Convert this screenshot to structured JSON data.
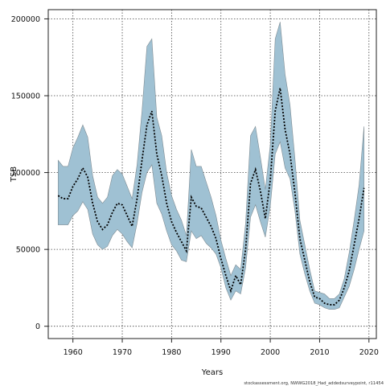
{
  "chart_data": {
    "type": "area",
    "xlabel": "Years",
    "ylabel": "TSB",
    "footnote": "stockassessment.org, NWWG2018_Had_addedsurveypoint, r11454",
    "xlim": [
      1955.0,
      2021.5
    ],
    "ylim": [
      -8000,
      206000
    ],
    "x_ticks": [
      1960,
      1970,
      1980,
      1990,
      2000,
      2010,
      2020
    ],
    "y_ticks": [
      0,
      50000,
      100000,
      150000,
      200000
    ],
    "grid": true,
    "band_color": "#9fc1d3",
    "band_edge_color": "#7f8c93",
    "line_color": "#000000",
    "series": [
      {
        "years": [
          1957,
          1958,
          1959,
          1960,
          1961,
          1962,
          1963,
          1964,
          1965,
          1966,
          1967,
          1968,
          1969,
          1970,
          1971,
          1972,
          1973,
          1974,
          1975,
          1976,
          1977,
          1978,
          1979,
          1980,
          1981,
          1982,
          1983,
          1984,
          1985,
          1986,
          1987,
          1988,
          1989,
          1990,
          1991,
          1992,
          1993,
          1994,
          1995,
          1996,
          1997,
          1998,
          1999,
          2000,
          2001,
          2002,
          2003,
          2004,
          2005,
          2006,
          2007,
          2008,
          2009,
          2010,
          2011,
          2012,
          2013,
          2014,
          2015,
          2016,
          2017,
          2018,
          2019
        ],
        "estimate": [
          85000,
          83000,
          83000,
          91000,
          96000,
          103000,
          97000,
          80000,
          68000,
          63000,
          66000,
          74000,
          80000,
          79000,
          72000,
          65000,
          83000,
          108000,
          131000,
          140000,
          112000,
          98000,
          80000,
          68000,
          61000,
          55000,
          49000,
          84000,
          78000,
          77000,
          71000,
          65000,
          57000,
          44000,
          33000,
          23000,
          33000,
          27000,
          50000,
          93000,
          102000,
          88000,
          70000,
          95000,
          140000,
          155000,
          128000,
          112000,
          87000,
          57000,
          43000,
          29000,
          19000,
          18000,
          15000,
          14000,
          14000,
          17000,
          25000,
          36000,
          53000,
          70000,
          90000
        ],
        "lower": [
          66000,
          66000,
          66000,
          72000,
          75000,
          81000,
          76000,
          60000,
          53000,
          50000,
          52000,
          59000,
          63000,
          60000,
          55000,
          51000,
          67000,
          87000,
          100000,
          105000,
          80000,
          73000,
          62000,
          53000,
          49000,
          43000,
          42000,
          62000,
          57000,
          59000,
          54000,
          51000,
          47000,
          38000,
          25000,
          17000,
          23000,
          21000,
          38000,
          71000,
          79000,
          68000,
          58000,
          78000,
          112000,
          120000,
          103000,
          96000,
          75000,
          47000,
          34000,
          23000,
          15000,
          14000,
          12000,
          11000,
          11000,
          12000,
          19000,
          26000,
          37000,
          50000,
          62000
        ],
        "upper": [
          108000,
          104000,
          104000,
          116000,
          123000,
          131000,
          123000,
          98000,
          84000,
          80000,
          84000,
          98000,
          102000,
          99000,
          91000,
          83000,
          105000,
          140000,
          182000,
          187000,
          136000,
          124000,
          100000,
          85000,
          76000,
          69000,
          59000,
          115000,
          104000,
          104000,
          94000,
          84000,
          72000,
          56000,
          44000,
          33000,
          40000,
          37000,
          67000,
          124000,
          130000,
          110000,
          89000,
          118000,
          187000,
          198000,
          164000,
          144000,
          109000,
          69000,
          53000,
          37000,
          23000,
          22000,
          21000,
          18000,
          18000,
          21000,
          31000,
          48000,
          69000,
          92000,
          130000
        ]
      }
    ]
  }
}
